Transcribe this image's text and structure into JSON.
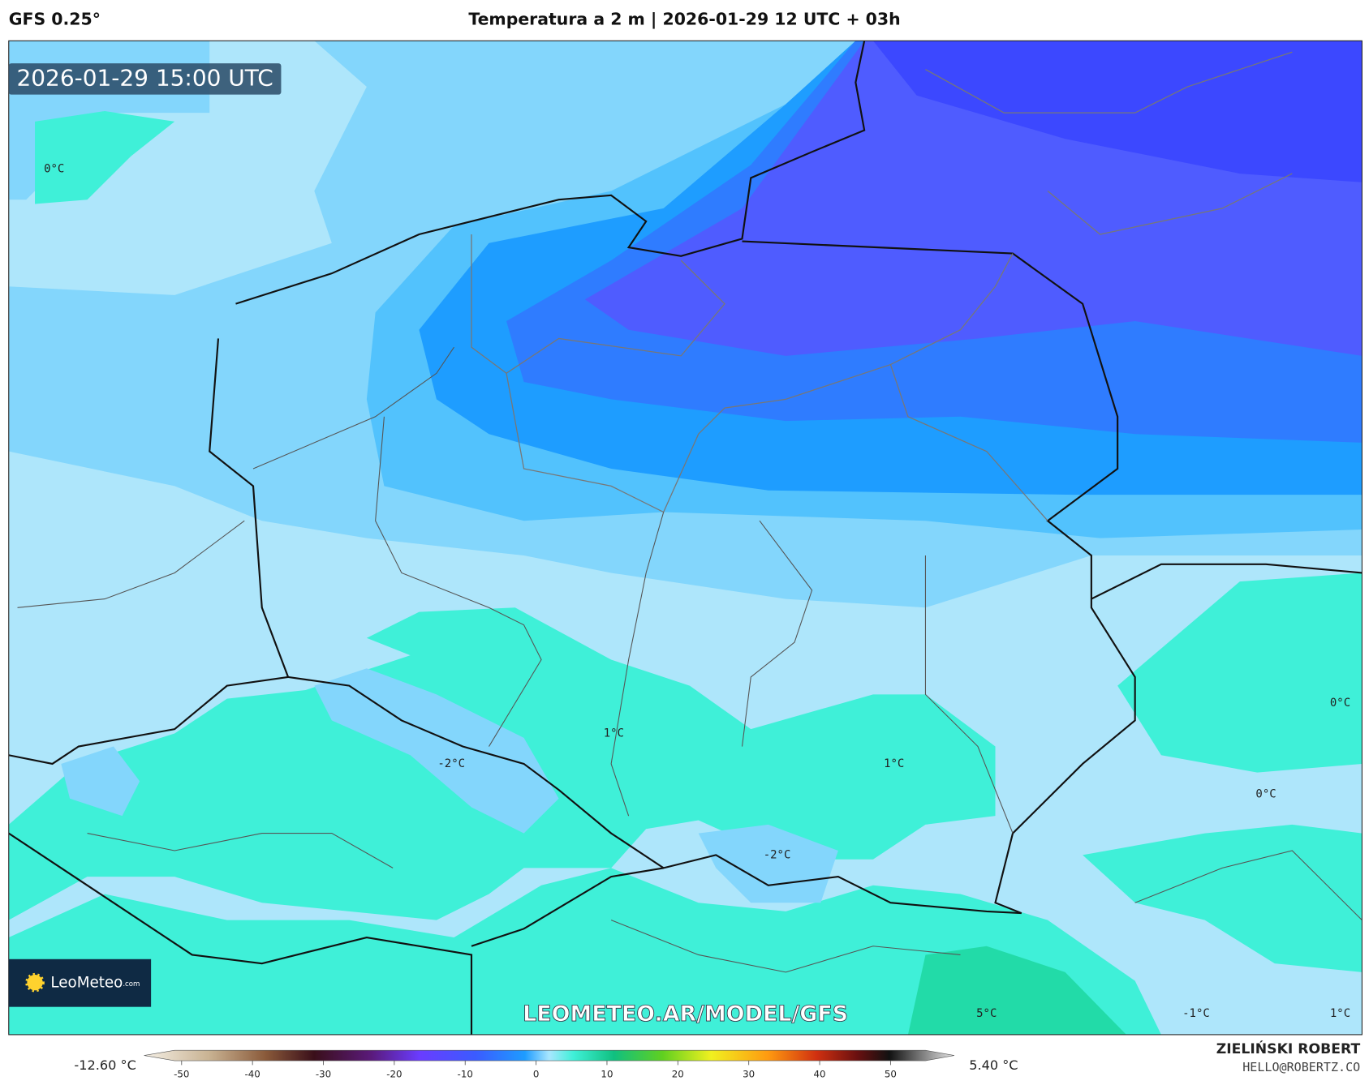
{
  "header": {
    "model": "GFS 0.25°",
    "title": "Temperatura a 2 m | 2026-01-29 12 UTC + 03h"
  },
  "map": {
    "timestamp": "2026-01-29 15:00 UTC",
    "contour_labels": [
      "0°C",
      "1°C",
      "-2°C",
      "1°C",
      "-2°C",
      "0°C",
      "0°C",
      "5°C",
      "-1°C",
      "1°C"
    ],
    "watermark": "LEOMETEO.AR/MODEL/GFS",
    "logo": {
      "name": "LeoMeteo",
      "suffix": ".com"
    }
  },
  "colorbar": {
    "min_label": "-12.60 °C",
    "max_label": "5.40 °C",
    "ticks": [
      -50,
      -40,
      -30,
      -20,
      -10,
      0,
      10,
      20,
      30,
      40,
      50
    ]
  },
  "credits": {
    "author": "ZIELIŃSKI ROBERT",
    "contact": "HELLO@ROBERTZ.CO"
  }
}
